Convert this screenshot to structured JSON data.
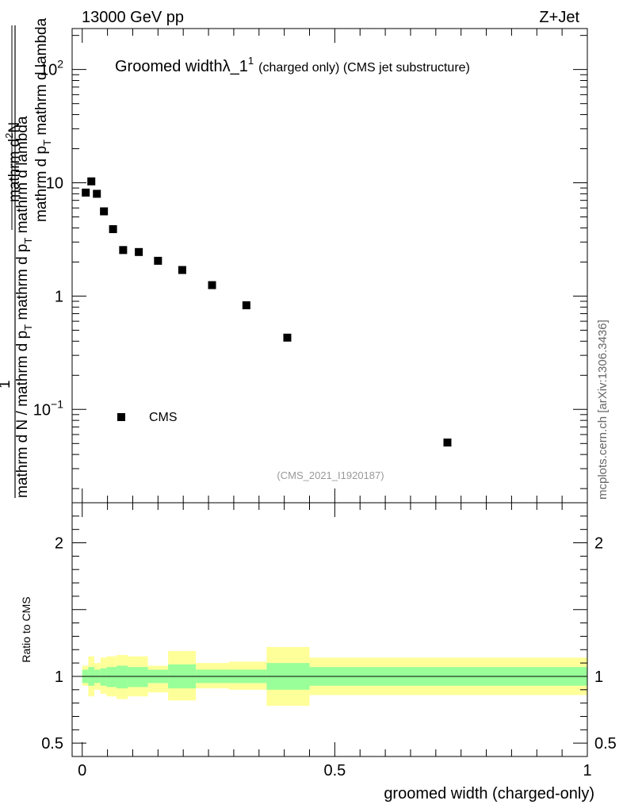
{
  "header": {
    "left_label": "13000 GeV pp",
    "right_label": "Z+Jet"
  },
  "side_label": "mcplots.cern.ch [arXiv:1306.3436]",
  "chart_data": [
    {
      "type": "scatter",
      "title_main": "Groomed width",
      "title_symbol": "λ_1",
      "title_sup": "1",
      "title_detail": "(charged only) (CMS jet substructure)",
      "ylabel": {
        "numerator": "mathrm d",
        "numerator_sup": "2",
        "numerator_tail": "N",
        "lead": "1",
        "frac_num": "mathrm d p",
        "frac_num_sub": "T",
        "frac_num_tail": " mathrm d lambda",
        "denom_a": "mathrm d N",
        "denom_b": " / mathrm d p",
        "denom_sub": "T",
        "denom_c": " mathrm d p",
        "denom_sub2": "T",
        "denom_d": " mathrm d lambda"
      },
      "yscale": "log",
      "ylim": [
        0.015,
        230
      ],
      "xlim": [
        -0.02,
        1.0
      ],
      "y_ticks": [
        {
          "value": 100,
          "base": "10",
          "exp": "2"
        },
        {
          "value": 10,
          "base": "10",
          "exp": ""
        },
        {
          "value": 1,
          "base": "1",
          "exp": ""
        },
        {
          "value": 0.1,
          "base": "10",
          "exp": "−1"
        }
      ],
      "series": [
        {
          "name": "CMS",
          "marker": "square",
          "color": "#000000",
          "x": [
            0.007,
            0.018,
            0.029,
            0.043,
            0.061,
            0.081,
            0.112,
            0.15,
            0.198,
            0.257,
            0.325,
            0.406,
            0.723
          ],
          "y": [
            8.2,
            10.3,
            8.0,
            5.6,
            3.9,
            2.55,
            2.45,
            2.05,
            1.7,
            1.25,
            0.83,
            0.43,
            0.051
          ]
        }
      ],
      "legend": {
        "entry": "CMS",
        "position": "bottom-left"
      },
      "watermark": "(CMS_2021_I1920187)"
    },
    {
      "type": "area",
      "ylabel": "Ratio to CMS",
      "xlabel": "groomed width (charged-only)",
      "ylim": [
        0.4,
        2.3
      ],
      "xlim": [
        -0.02,
        1.0
      ],
      "y_ticks": [
        {
          "value": 2,
          "label": "2"
        },
        {
          "value": 1,
          "label": "1"
        },
        {
          "value": 0.5,
          "label": "0.5"
        }
      ],
      "x_ticks": [
        {
          "value": 0,
          "label": "0"
        },
        {
          "value": 0.5,
          "label": "0.5"
        },
        {
          "value": 1,
          "label": "1"
        }
      ],
      "reference_line": 1,
      "bins": [
        0.0,
        0.012,
        0.024,
        0.036,
        0.048,
        0.068,
        0.09,
        0.13,
        0.17,
        0.225,
        0.29,
        0.365,
        0.45,
        1.0
      ],
      "band_outer": {
        "color": "#ffff99",
        "lo": [
          0.93,
          0.85,
          0.9,
          0.87,
          0.85,
          0.83,
          0.85,
          0.88,
          0.82,
          0.91,
          0.9,
          0.78,
          0.86
        ],
        "hi": [
          1.08,
          1.15,
          1.1,
          1.14,
          1.15,
          1.16,
          1.15,
          1.08,
          1.19,
          1.1,
          1.11,
          1.22,
          1.14
        ]
      },
      "band_inner": {
        "color": "#99ff99",
        "lo": [
          0.95,
          0.93,
          0.95,
          0.93,
          0.92,
          0.91,
          0.92,
          0.95,
          0.91,
          0.95,
          0.95,
          0.9,
          0.93
        ],
        "hi": [
          1.05,
          1.07,
          1.05,
          1.06,
          1.07,
          1.08,
          1.07,
          1.05,
          1.09,
          1.05,
          1.05,
          1.1,
          1.07
        ]
      }
    }
  ]
}
